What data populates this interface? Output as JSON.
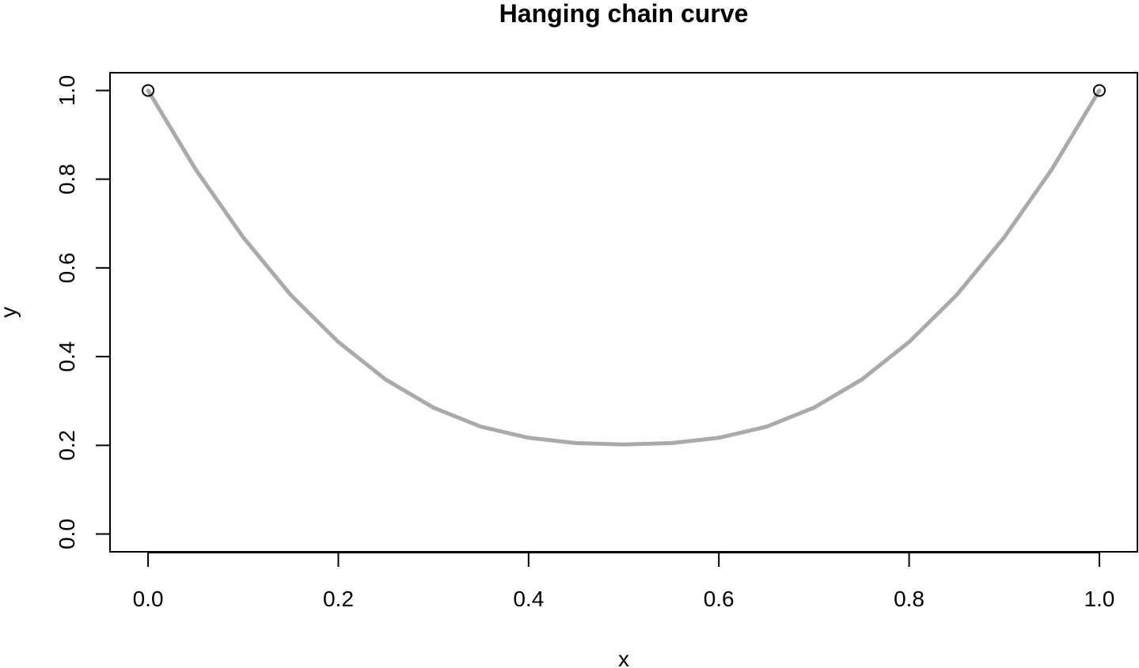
{
  "chart_data": {
    "type": "line",
    "title": "Hanging chain curve",
    "xlabel": "x",
    "ylabel": "y",
    "xlim": [
      -0.04,
      1.04
    ],
    "ylim": [
      -0.04,
      1.04
    ],
    "x_ticks": [
      0.0,
      0.2,
      0.4,
      0.6,
      0.8,
      1.0
    ],
    "x_tick_labels": [
      "0.0",
      "0.2",
      "0.4",
      "0.6",
      "0.8",
      "1.0"
    ],
    "y_ticks": [
      0.0,
      0.2,
      0.4,
      0.6,
      0.8,
      1.0
    ],
    "y_tick_labels": [
      "0.0",
      "0.2",
      "0.4",
      "0.6",
      "0.8",
      "1.0"
    ],
    "grid": false,
    "series": [
      {
        "kind": "curve",
        "color": "#aaaaaa",
        "x": [
          0.0,
          0.05,
          0.1,
          0.15,
          0.2,
          0.25,
          0.3,
          0.35,
          0.4,
          0.45,
          0.5,
          0.55,
          0.6,
          0.65,
          0.7,
          0.75,
          0.8,
          0.85,
          0.9,
          0.95,
          1.0
        ],
        "y": [
          1.0,
          0.822,
          0.669,
          0.539,
          0.433,
          0.348,
          0.285,
          0.242,
          0.217,
          0.205,
          0.202,
          0.205,
          0.217,
          0.242,
          0.285,
          0.348,
          0.433,
          0.539,
          0.669,
          0.822,
          1.0
        ]
      },
      {
        "kind": "points",
        "marker": "open-circle",
        "color": "#000000",
        "x": [
          0.0,
          1.0
        ],
        "y": [
          1.0,
          1.0
        ]
      }
    ]
  }
}
